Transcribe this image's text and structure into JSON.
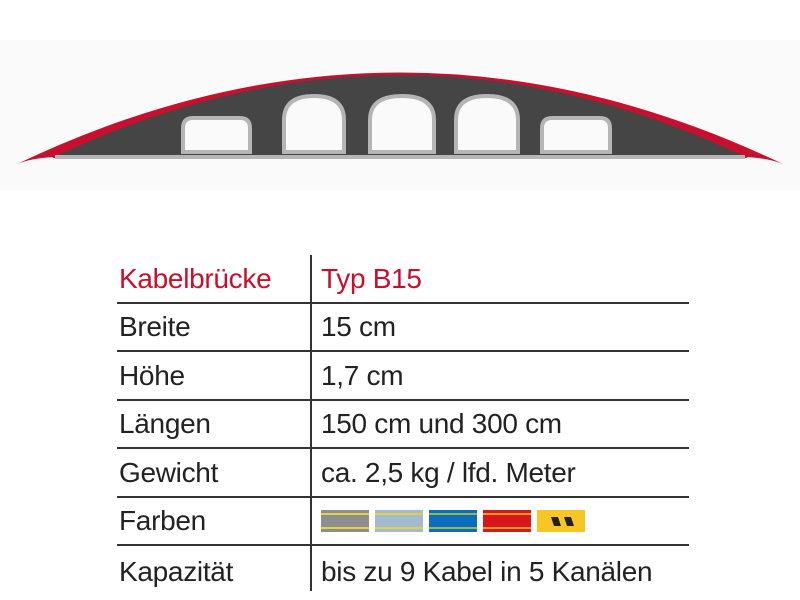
{
  "header": {
    "key": "Kabelbrücke",
    "value": "Typ B15"
  },
  "rows": [
    {
      "key": "Breite",
      "value": "15 cm"
    },
    {
      "key": "Höhe",
      "value": "1,7 cm"
    },
    {
      "key": "Längen",
      "value": "150 cm und 300 cm"
    },
    {
      "key": "Gewicht",
      "value": "ca. 2,5 kg / lfd. Meter"
    },
    {
      "key": "Farben"
    },
    {
      "key": "Kapazität",
      "value": "bis zu 9 Kabel in 5 Kanälen"
    }
  ],
  "colors": {
    "accent": "#c8102e",
    "profile_body": "#454545",
    "swatches": [
      {
        "name": "grey",
        "fill": "#8e8e90",
        "stripe": "#e6d23a"
      },
      {
        "name": "light-blue",
        "fill": "#a3bad3",
        "stripe": "#e6d23a"
      },
      {
        "name": "blue",
        "fill": "#0a6dbf",
        "stripe": "#9ab83a"
      },
      {
        "name": "red",
        "fill": "#d7161e",
        "stripe": "#f0a020"
      },
      {
        "name": "yellow-black",
        "fill": "#f7c526",
        "stripe": "#f7c526"
      }
    ]
  }
}
